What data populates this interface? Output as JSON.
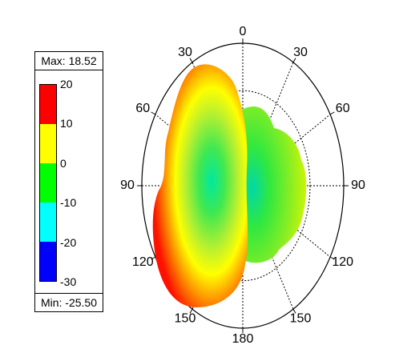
{
  "chart_data": {
    "type": "heatmap",
    "subtype": "polar-3d-radiation-pattern",
    "legend": {
      "max_label": "Max: 18.52",
      "min_label": "Min: -25.50",
      "max_value": 18.52,
      "min_value": -25.5,
      "ticks": [
        "20",
        "10",
        "0",
        "-10",
        "-20",
        "-30"
      ],
      "tick_values": [
        20,
        10,
        0,
        -10,
        -20,
        -30
      ],
      "bands": [
        {
          "range": [
            10,
            20
          ],
          "color": "#ff0000"
        },
        {
          "range": [
            0,
            10
          ],
          "color": "#ffff00"
        },
        {
          "range": [
            -10,
            0
          ],
          "color": "#00ff00"
        },
        {
          "range": [
            -20,
            -10
          ],
          "color": "#00ffff"
        },
        {
          "range": [
            -30,
            -20
          ],
          "color": "#0000ff"
        }
      ]
    },
    "angle_labels": [
      {
        "text": "0",
        "angle": 0
      },
      {
        "text": "30",
        "angle": 30
      },
      {
        "text": "60",
        "angle": 60
      },
      {
        "text": "90",
        "angle": 90
      },
      {
        "text": "120",
        "angle": 120
      },
      {
        "text": "150",
        "angle": 150
      },
      {
        "text": "180",
        "angle": 180
      },
      {
        "text": "150",
        "angle": 210
      },
      {
        "text": "120",
        "angle": 240
      },
      {
        "text": "90",
        "angle": 270
      },
      {
        "text": "60",
        "angle": 300
      },
      {
        "text": "30",
        "angle": 330
      }
    ],
    "rings": 3,
    "grid": true
  }
}
